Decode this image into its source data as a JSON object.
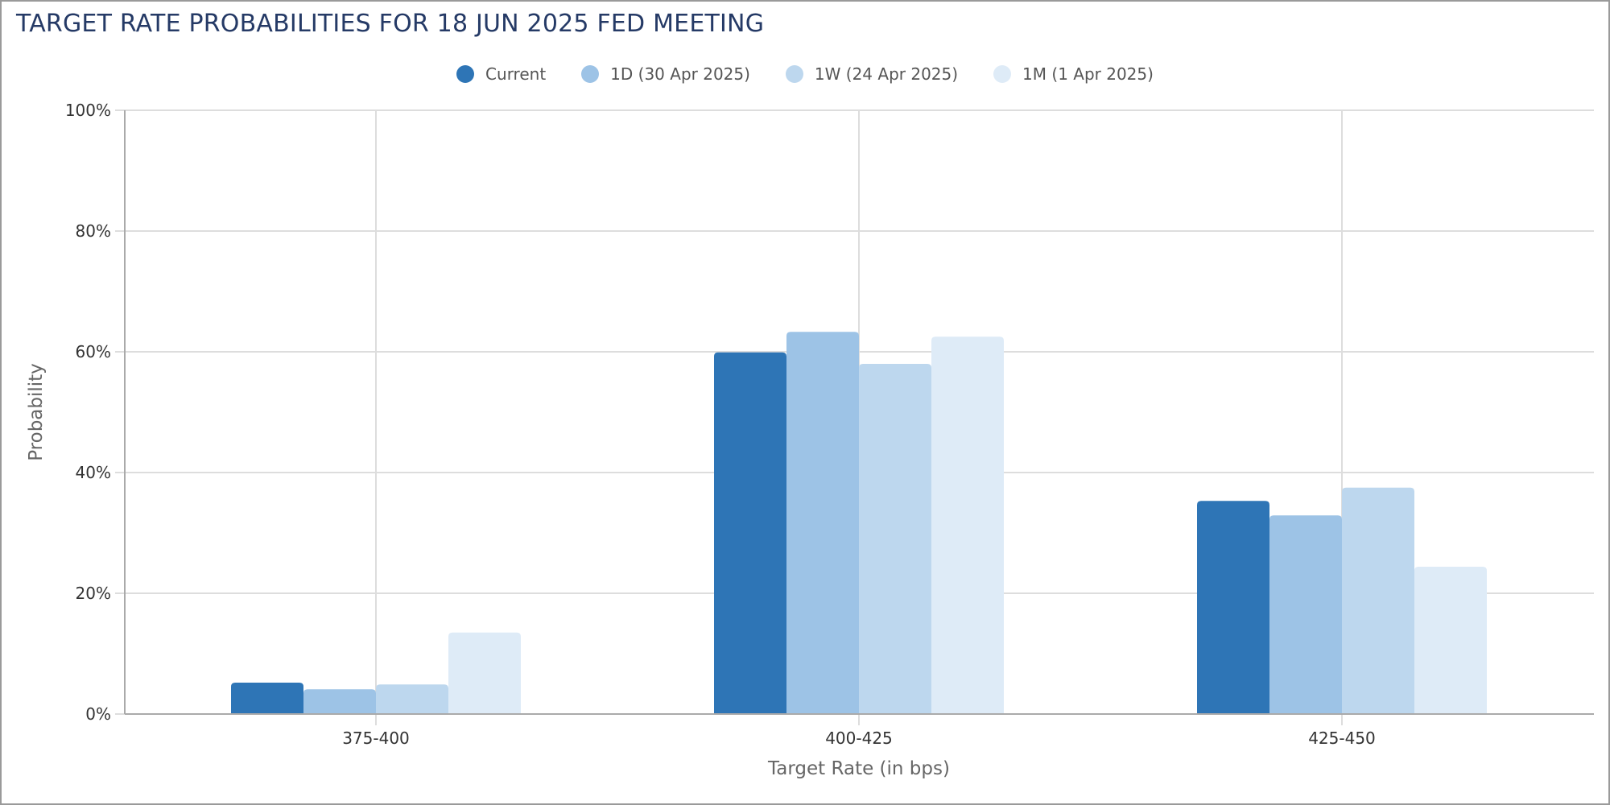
{
  "title": "TARGET RATE PROBABILITIES FOR 18 JUN 2025 FED MEETING",
  "legend": [
    {
      "label": "Current",
      "color": "#2e75b6"
    },
    {
      "label": "1D (30 Apr 2025)",
      "color": "#9dc3e6"
    },
    {
      "label": "1W (24 Apr 2025)",
      "color": "#bdd7ee"
    },
    {
      "label": "1M (1 Apr 2025)",
      "color": "#deebf7"
    }
  ],
  "axes": {
    "x_title": "Target Rate (in bps)",
    "y_title": "Probability",
    "y_ticks": [
      "0%",
      "20%",
      "40%",
      "60%",
      "80%",
      "100%"
    ]
  },
  "chart_data": {
    "type": "bar",
    "title": "TARGET RATE PROBABILITIES FOR 18 JUN 2025 FED MEETING",
    "xlabel": "Target Rate (in bps)",
    "ylabel": "Probability",
    "ylim": [
      0,
      100
    ],
    "y_unit": "%",
    "grid": true,
    "legend_position": "top",
    "categories": [
      "375-400",
      "400-425",
      "425-450"
    ],
    "series": [
      {
        "name": "Current",
        "color": "#2e75b6",
        "values": [
          5.2,
          59.9,
          35.3
        ]
      },
      {
        "name": "1D (30 Apr 2025)",
        "color": "#9dc3e6",
        "values": [
          4.1,
          63.3,
          32.9
        ]
      },
      {
        "name": "1W (24 Apr 2025)",
        "color": "#bdd7ee",
        "values": [
          4.9,
          58.0,
          37.5
        ]
      },
      {
        "name": "1M (1 Apr 2025)",
        "color": "#deebf7",
        "values": [
          13.5,
          62.5,
          24.4
        ]
      }
    ]
  }
}
